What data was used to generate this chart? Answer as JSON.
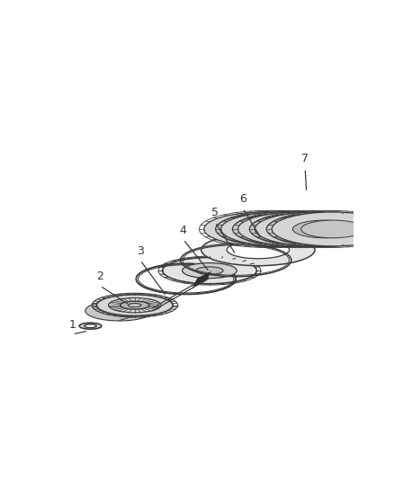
{
  "background_color": "#ffffff",
  "line_color": "#3a3a3a",
  "label_color": "#333333",
  "figure_width": 4.38,
  "figure_height": 5.33,
  "dpi": 100,
  "iso_skew": 0.32,
  "iso_scale": 0.38
}
